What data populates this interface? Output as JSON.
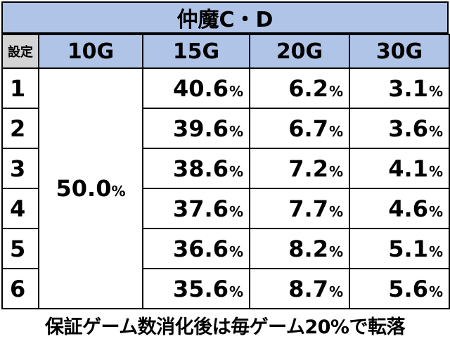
{
  "title": "仲魔C・D",
  "header": {
    "setting_label": "設定",
    "columns": [
      "10G",
      "15G",
      "20G",
      "30G"
    ]
  },
  "merged_10g": {
    "value": "50.0",
    "unit": "%"
  },
  "rows": [
    {
      "setting": "1",
      "g15": "40.6",
      "g20": "6.2",
      "g30": "3.1",
      "unit": "%"
    },
    {
      "setting": "2",
      "g15": "39.6",
      "g20": "6.7",
      "g30": "3.6",
      "unit": "%"
    },
    {
      "setting": "3",
      "g15": "38.6",
      "g20": "7.2",
      "g30": "4.1",
      "unit": "%"
    },
    {
      "setting": "4",
      "g15": "37.6",
      "g20": "7.7",
      "g30": "4.6",
      "unit": "%"
    },
    {
      "setting": "5",
      "g15": "36.6",
      "g20": "8.2",
      "g30": "5.1",
      "unit": "%"
    },
    {
      "setting": "6",
      "g15": "35.6",
      "g20": "8.7",
      "g30": "5.6",
      "unit": "%"
    }
  ],
  "footer": "保証ゲーム数消化後は毎ゲーム20%で転落",
  "colors": {
    "header_bg": "#b0c4e8",
    "setting_header_bg": "#d4d4d4"
  }
}
